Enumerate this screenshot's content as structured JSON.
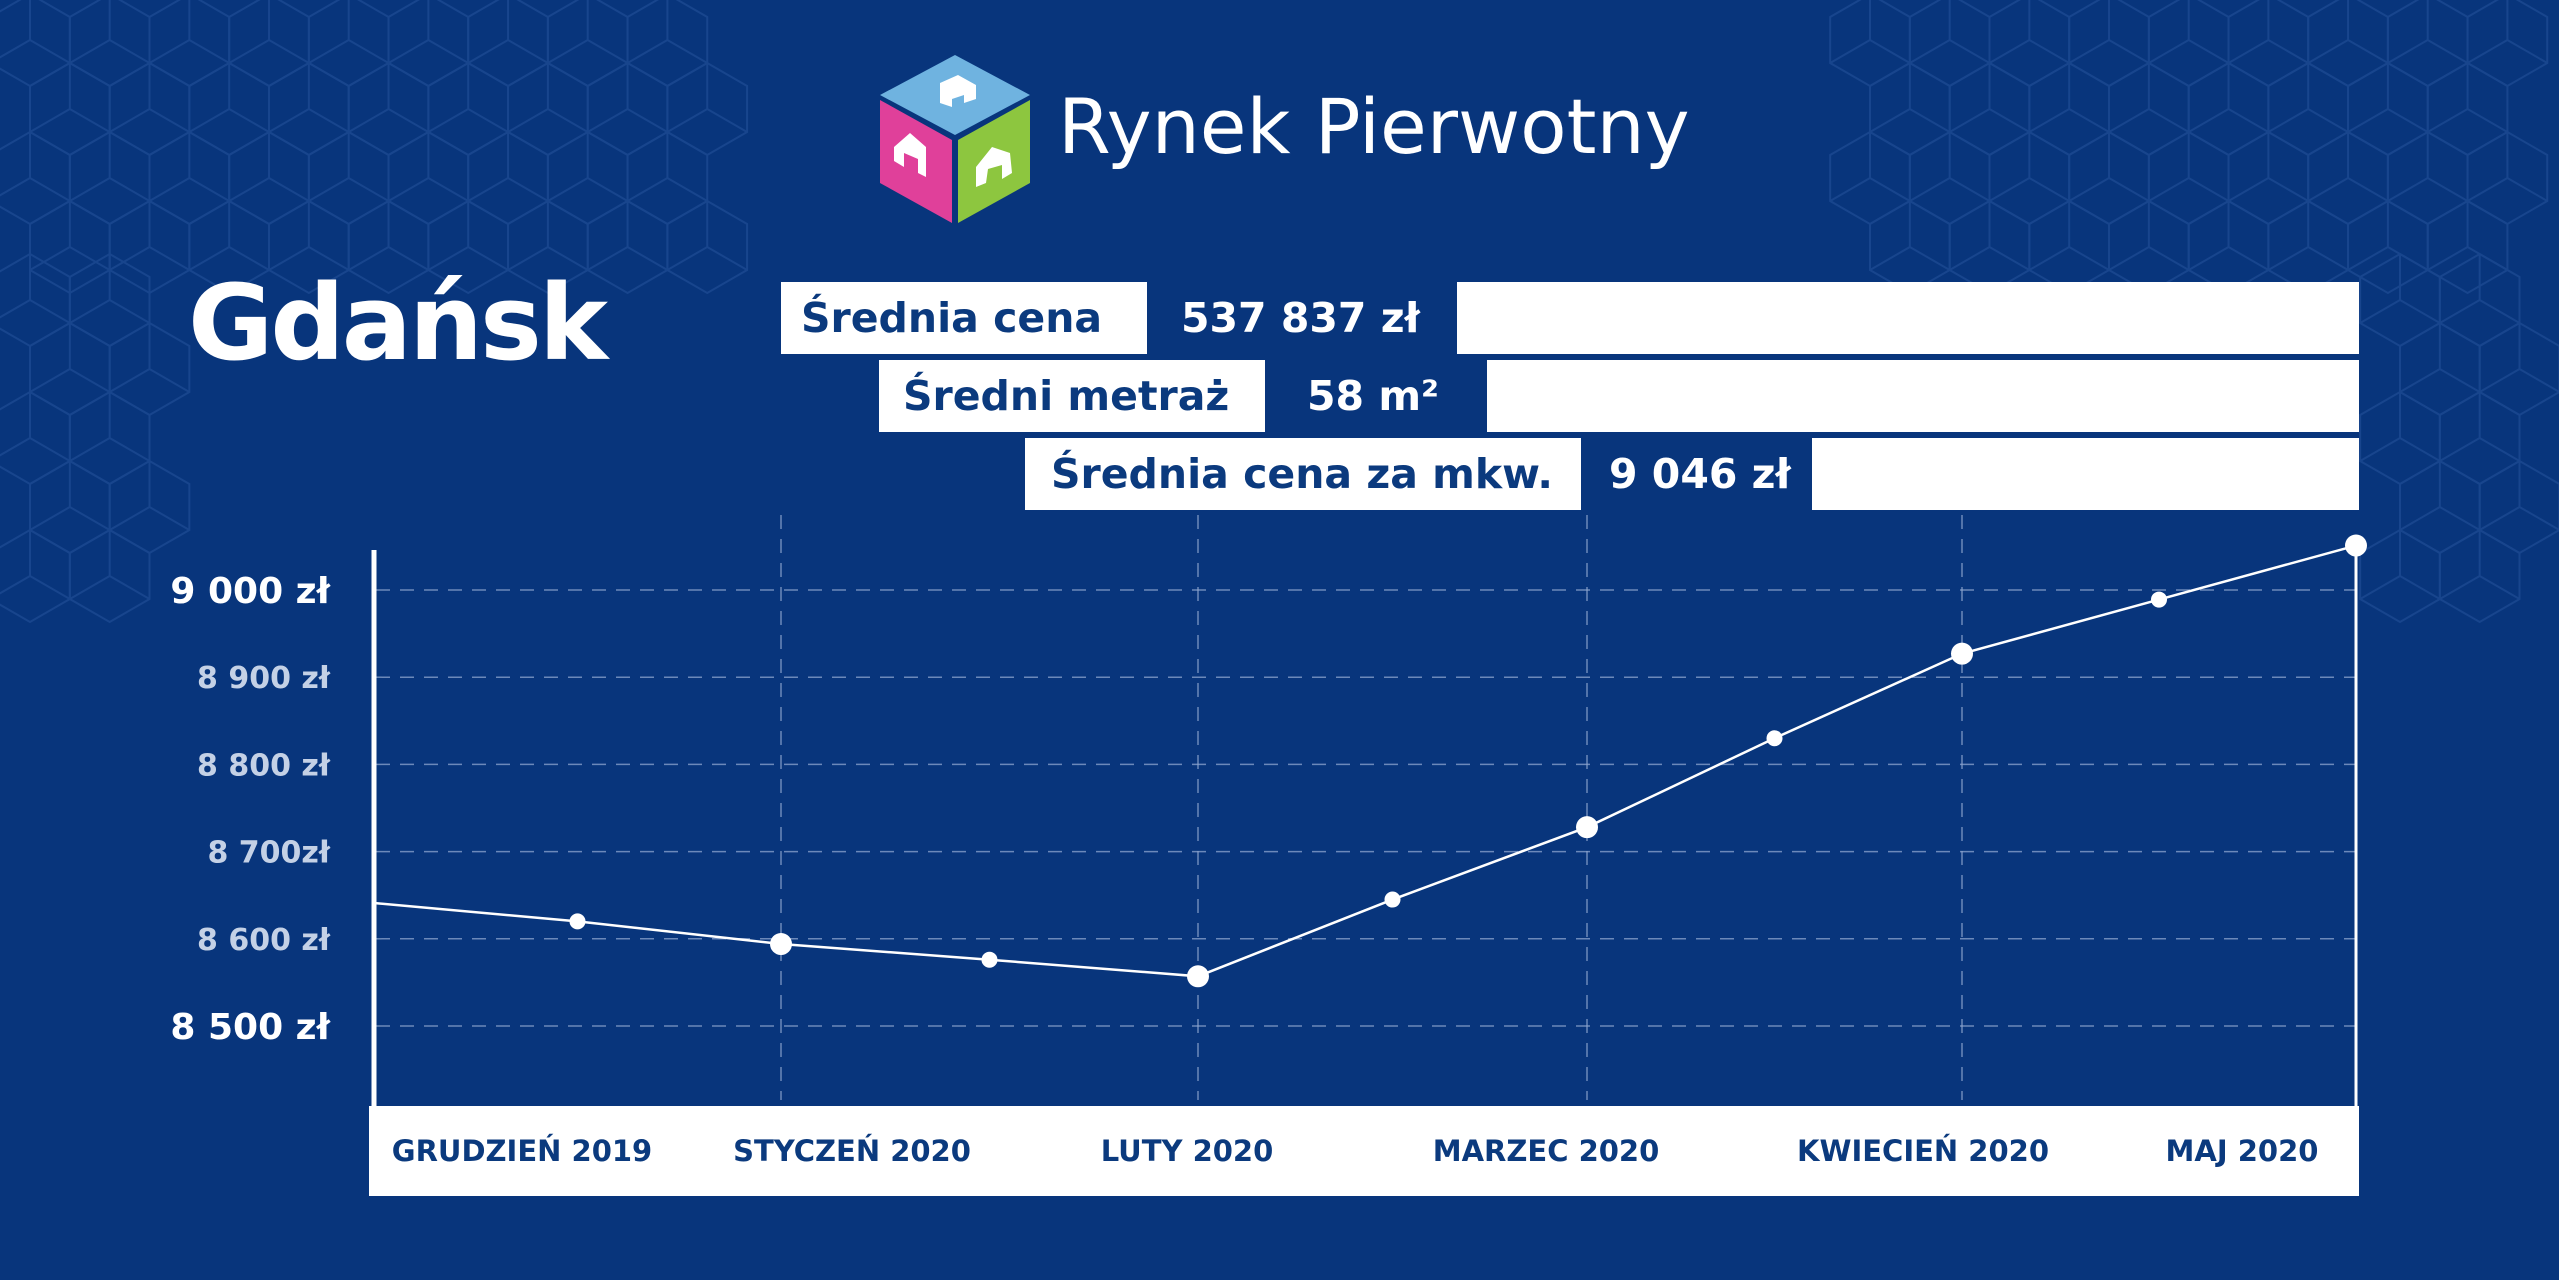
{
  "brand": {
    "name": "Rynek Pierwotny",
    "logo_colors": {
      "top": "#6fb3e0",
      "left": "#e0409a",
      "right": "#8dc63f"
    }
  },
  "city": "Gdańsk",
  "stats": [
    {
      "label": "Średnia cena",
      "value": "537 837 zł"
    },
    {
      "label": "Średni metraż",
      "value": "58 m²"
    },
    {
      "label": "Średnia cena za mkw.",
      "value": "9 046 zł"
    }
  ],
  "colors": {
    "background": "#08357c",
    "accent_text": "#0b3a7e",
    "line": "#ffffff"
  },
  "chart_data": {
    "type": "line",
    "title": "",
    "xlabel": "",
    "ylabel": "",
    "grid": true,
    "legend": "none",
    "ylim": [
      8410,
      9060
    ],
    "yticks": [
      {
        "value": 9000,
        "label": "9 000 zł",
        "major": true
      },
      {
        "value": 8900,
        "label": "8 900 zł",
        "major": false
      },
      {
        "value": 8800,
        "label": "8 800 zł",
        "major": false
      },
      {
        "value": 8700,
        "label": "8 700zł",
        "major": false
      },
      {
        "value": 8600,
        "label": "8 600 zł",
        "major": false
      },
      {
        "value": 8500,
        "label": "8 500 zł",
        "major": true
      }
    ],
    "categories": [
      "GRUDZIEŃ 2019",
      "STYCZEŃ 2020",
      "LUTY 2020",
      "MARZEC 2020",
      "KWIECIEŃ 2020",
      "MAJ 2020"
    ],
    "points": [
      {
        "month": "GRUDZIEŃ 2019",
        "x": 0.0,
        "value": 8641,
        "marker": "none"
      },
      {
        "month": "GRUDZIEŃ 2019",
        "x": 0.5,
        "value": 8620,
        "marker": "small"
      },
      {
        "month": "STYCZEŃ 2020",
        "x": 1.0,
        "value": 8594,
        "marker": "large"
      },
      {
        "month": "STYCZEŃ 2020",
        "x": 1.5,
        "value": 8576,
        "marker": "small"
      },
      {
        "month": "LUTY 2020",
        "x": 2.0,
        "value": 8557,
        "marker": "large"
      },
      {
        "month": "LUTY 2020",
        "x": 2.5,
        "value": 8645,
        "marker": "small"
      },
      {
        "month": "MARZEC 2020",
        "x": 3.0,
        "value": 8728,
        "marker": "large"
      },
      {
        "month": "MARZEC 2020",
        "x": 3.5,
        "value": 8830,
        "marker": "small"
      },
      {
        "month": "KWIECIEŃ 2020",
        "x": 4.0,
        "value": 8927,
        "marker": "large"
      },
      {
        "month": "KWIECIEŃ 2020",
        "x": 4.5,
        "value": 8989,
        "marker": "small"
      },
      {
        "month": "MAJ 2020",
        "x": 5.0,
        "value": 9051,
        "marker": "large"
      }
    ]
  }
}
